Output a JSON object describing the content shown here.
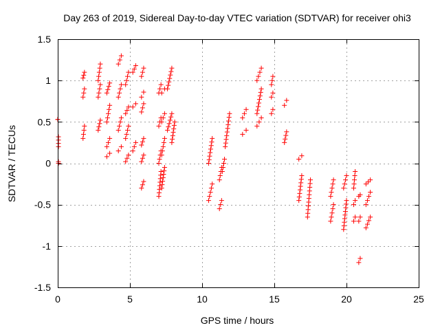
{
  "chart_data": {
    "type": "scatter",
    "title": "Day 263 of 2019, Sidereal Day-to-day VTEC variation (SDTVAR) for receiver ohi3",
    "xlabel": "GPS time / hours",
    "ylabel": "SDTVAR / TECUs",
    "xlim": [
      0,
      25
    ],
    "ylim": [
      -1.5,
      1.5
    ],
    "xticks": [
      0,
      5,
      10,
      15,
      20,
      25
    ],
    "yticks": [
      -1.5,
      -1,
      -0.5,
      0,
      0.5,
      1,
      1.5
    ],
    "xtick_labels": [
      "0",
      "5",
      "10",
      "15",
      "20",
      "25"
    ],
    "ytick_labels": [
      "-1.5",
      "-1",
      "-0.5",
      "0",
      "0.5",
      "1",
      "1.5"
    ],
    "grid": true,
    "marker": "+",
    "series_color": "#ff0000",
    "segments": [
      [
        0.0,
        0.53,
        0.0,
        0.53
      ],
      [
        0.05,
        0.2,
        0.05,
        0.32
      ],
      [
        0.05,
        0.0,
        0.05,
        0.02
      ],
      [
        1.75,
        0.3,
        1.85,
        0.45
      ],
      [
        1.75,
        0.8,
        1.85,
        0.9
      ],
      [
        1.75,
        1.03,
        1.85,
        1.1
      ],
      [
        2.8,
        0.4,
        2.95,
        0.52
      ],
      [
        2.8,
        0.8,
        2.95,
        0.95
      ],
      [
        2.8,
        1.0,
        2.95,
        1.2
      ],
      [
        3.4,
        0.08,
        3.6,
        0.12
      ],
      [
        3.4,
        0.2,
        3.6,
        0.3
      ],
      [
        3.4,
        0.5,
        3.6,
        0.7
      ],
      [
        3.4,
        0.85,
        3.6,
        0.97
      ],
      [
        4.2,
        0.15,
        4.4,
        0.2
      ],
      [
        4.2,
        0.4,
        4.4,
        0.55
      ],
      [
        4.2,
        0.8,
        4.4,
        0.95
      ],
      [
        4.2,
        1.2,
        4.4,
        1.3
      ],
      [
        4.7,
        0.02,
        4.9,
        0.1
      ],
      [
        4.7,
        0.3,
        4.9,
        0.45
      ],
      [
        4.7,
        0.6,
        4.9,
        0.68
      ],
      [
        4.7,
        0.95,
        4.9,
        1.1
      ],
      [
        5.2,
        0.15,
        5.4,
        0.25
      ],
      [
        5.2,
        0.68,
        5.4,
        0.72
      ],
      [
        5.2,
        1.1,
        5.4,
        1.18
      ],
      [
        5.8,
        -0.3,
        5.95,
        -0.22
      ],
      [
        5.8,
        0.02,
        5.95,
        0.1
      ],
      [
        5.8,
        0.22,
        5.95,
        0.3
      ],
      [
        5.8,
        0.62,
        5.95,
        0.72
      ],
      [
        5.8,
        0.8,
        5.95,
        0.86
      ],
      [
        5.8,
        1.05,
        5.95,
        1.15
      ],
      [
        7.0,
        -0.4,
        7.15,
        -0.1
      ],
      [
        7.0,
        0.0,
        7.15,
        0.15
      ],
      [
        7.0,
        0.45,
        7.15,
        0.55
      ],
      [
        7.0,
        0.85,
        7.15,
        0.95
      ],
      [
        7.2,
        -0.3,
        7.4,
        -0.05
      ],
      [
        7.2,
        0.1,
        7.4,
        0.3
      ],
      [
        7.2,
        0.5,
        7.4,
        0.6
      ],
      [
        7.2,
        0.85,
        7.4,
        0.9
      ],
      [
        7.6,
        0.4,
        7.9,
        0.6
      ],
      [
        7.6,
        0.9,
        7.9,
        1.15
      ],
      [
        7.9,
        0.25,
        8.1,
        0.5
      ],
      [
        10.45,
        -0.45,
        10.7,
        -0.25
      ],
      [
        10.45,
        0.0,
        10.7,
        0.3
      ],
      [
        11.2,
        -0.55,
        11.35,
        -0.45
      ],
      [
        11.2,
        -0.2,
        11.35,
        -0.05
      ],
      [
        11.4,
        -0.1,
        11.55,
        0.05
      ],
      [
        11.6,
        0.2,
        11.9,
        0.6
      ],
      [
        12.8,
        0.35,
        13.05,
        0.4
      ],
      [
        12.8,
        0.55,
        13.05,
        0.65
      ],
      [
        13.8,
        0.45,
        14.1,
        0.55
      ],
      [
        13.8,
        0.6,
        14.1,
        0.9
      ],
      [
        13.8,
        1.0,
        14.1,
        1.15
      ],
      [
        14.8,
        0.6,
        14.9,
        0.65
      ],
      [
        14.8,
        0.8,
        14.9,
        0.85
      ],
      [
        14.8,
        0.95,
        14.9,
        1.05
      ],
      [
        15.7,
        0.25,
        15.85,
        0.38
      ],
      [
        15.7,
        0.7,
        15.85,
        0.76
      ],
      [
        16.7,
        -0.45,
        16.9,
        -0.15
      ],
      [
        16.7,
        0.05,
        16.9,
        0.09
      ],
      [
        17.3,
        -0.65,
        17.5,
        -0.2
      ],
      [
        18.9,
        -0.7,
        19.1,
        -0.5
      ],
      [
        18.9,
        -0.4,
        19.1,
        -0.2
      ],
      [
        19.8,
        -0.8,
        20.0,
        -0.45
      ],
      [
        19.8,
        -0.3,
        20.0,
        -0.15
      ],
      [
        20.5,
        -0.7,
        20.6,
        -0.65
      ],
      [
        20.5,
        -0.5,
        20.6,
        -0.45
      ],
      [
        20.5,
        -0.3,
        20.6,
        -0.1
      ],
      [
        20.85,
        -1.2,
        20.95,
        -1.15
      ],
      [
        20.85,
        -0.7,
        20.95,
        -0.65
      ],
      [
        20.85,
        -0.4,
        20.95,
        -0.38
      ],
      [
        21.35,
        -0.78,
        21.65,
        -0.65
      ],
      [
        21.35,
        -0.5,
        21.65,
        -0.35
      ],
      [
        21.35,
        -0.25,
        21.65,
        -0.2
      ]
    ]
  }
}
